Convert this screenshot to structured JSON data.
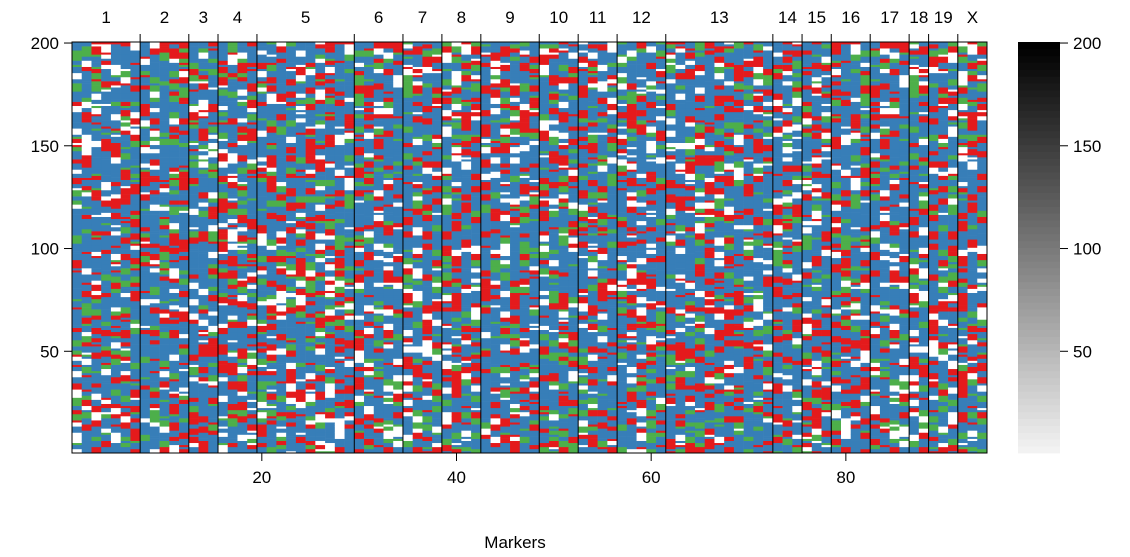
{
  "chart_data": {
    "type": "heatmap",
    "title": "",
    "xlabel": "Markers",
    "ylabel": "",
    "xlim": [
      0.5,
      94.5
    ],
    "ylim": [
      0.5,
      200.5
    ],
    "x_ticks": [
      20,
      40,
      60,
      80
    ],
    "y_ticks": [
      50,
      100,
      150,
      200
    ],
    "n_markers": 94,
    "n_rows": 200,
    "chromosomes": [
      {
        "name": "1",
        "start": 1,
        "end": 7
      },
      {
        "name": "2",
        "start": 8,
        "end": 12
      },
      {
        "name": "3",
        "start": 13,
        "end": 15
      },
      {
        "name": "4",
        "start": 16,
        "end": 19
      },
      {
        "name": "5",
        "start": 20,
        "end": 29
      },
      {
        "name": "6",
        "start": 30,
        "end": 34
      },
      {
        "name": "7",
        "start": 35,
        "end": 38
      },
      {
        "name": "8",
        "start": 39,
        "end": 42
      },
      {
        "name": "9",
        "start": 43,
        "end": 48
      },
      {
        "name": "10",
        "start": 49,
        "end": 52
      },
      {
        "name": "11",
        "start": 53,
        "end": 56
      },
      {
        "name": "12",
        "start": 57,
        "end": 61
      },
      {
        "name": "13",
        "start": 62,
        "end": 72
      },
      {
        "name": "14",
        "start": 73,
        "end": 75
      },
      {
        "name": "15",
        "start": 76,
        "end": 78
      },
      {
        "name": "16",
        "start": 79,
        "end": 82
      },
      {
        "name": "17",
        "start": 83,
        "end": 86
      },
      {
        "name": "18",
        "start": 87,
        "end": 88
      },
      {
        "name": "19",
        "start": 89,
        "end": 91
      },
      {
        "name": "X",
        "start": 92,
        "end": 94
      }
    ],
    "genotype_colors": [
      "#e41a1c",
      "#4daf4a",
      "#377eb8",
      "#ffffff"
    ],
    "genotype_proportions": [
      0.22,
      0.13,
      0.52,
      0.13
    ],
    "colorbar": {
      "range": [
        1,
        200
      ],
      "ticks": [
        50,
        100,
        150,
        200
      ],
      "colors": [
        "#f2f2f2",
        "#000000"
      ]
    },
    "grid": false,
    "legend": "right"
  }
}
